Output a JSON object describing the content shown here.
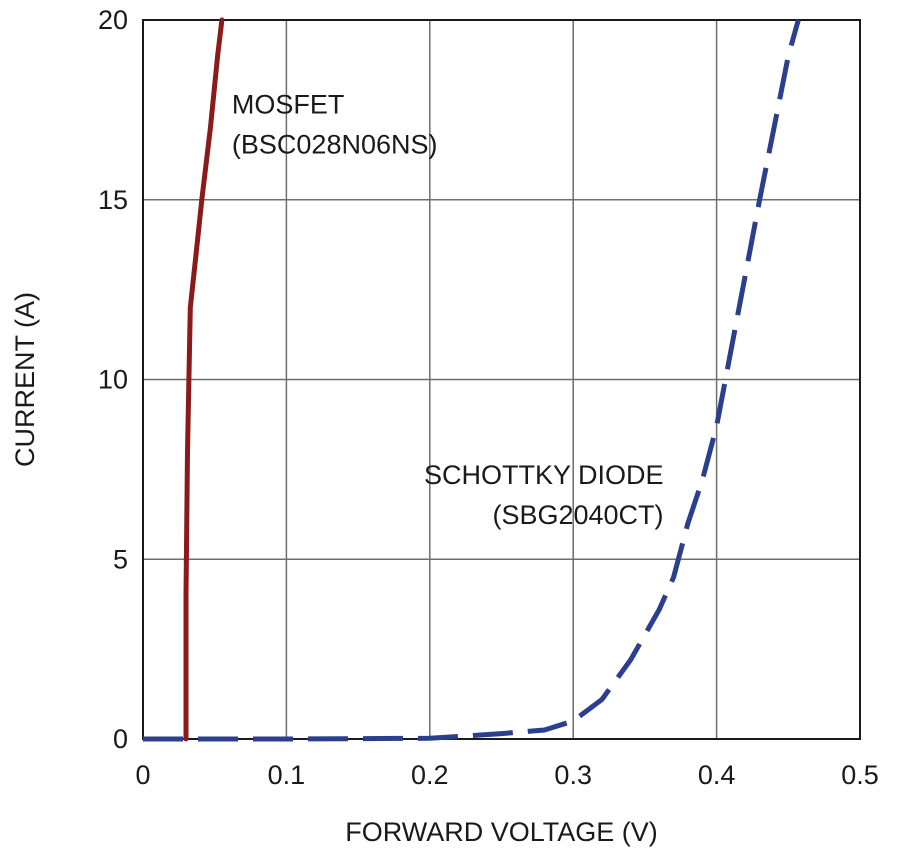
{
  "chart_data": {
    "type": "line",
    "xlabel": "FORWARD VOLTAGE (V)",
    "ylabel": "CURRENT (A)",
    "xlim": [
      0,
      0.5
    ],
    "ylim": [
      0,
      20
    ],
    "x_ticks": [
      0,
      0.1,
      0.2,
      0.3,
      0.4,
      0.5
    ],
    "x_tick_labels": [
      "0",
      "0.1",
      "0.2",
      "0.3",
      "0.4",
      "0.5"
    ],
    "y_ticks": [
      0,
      5,
      10,
      15,
      20
    ],
    "y_tick_labels": [
      "0",
      "5",
      "10",
      "15",
      "20"
    ],
    "grid": true,
    "legend": "none",
    "series": [
      {
        "name": "MOSFET (BSC028N06NS)",
        "color": "#8b1a1a",
        "line_style": "solid",
        "points": [
          [
            0.03,
            0
          ],
          [
            0.03,
            4
          ],
          [
            0.031,
            8
          ],
          [
            0.032,
            10
          ],
          [
            0.033,
            12
          ],
          [
            0.037,
            13.5
          ],
          [
            0.041,
            15
          ],
          [
            0.047,
            17
          ],
          [
            0.052,
            19
          ],
          [
            0.055,
            20
          ]
        ]
      },
      {
        "name": "SCHOTTKY DIODE (SBG2040CT)",
        "color": "#2b3f8c",
        "line_style": "dashed",
        "points": [
          [
            0,
            0
          ],
          [
            0.1,
            0
          ],
          [
            0.2,
            0.02
          ],
          [
            0.25,
            0.15
          ],
          [
            0.28,
            0.25
          ],
          [
            0.3,
            0.5
          ],
          [
            0.32,
            1.1
          ],
          [
            0.34,
            2.2
          ],
          [
            0.36,
            3.6
          ],
          [
            0.37,
            4.5
          ],
          [
            0.38,
            6.0
          ],
          [
            0.39,
            7.2
          ],
          [
            0.4,
            8.7
          ],
          [
            0.41,
            10.8
          ],
          [
            0.42,
            12.9
          ],
          [
            0.43,
            15.0
          ],
          [
            0.44,
            17.0
          ],
          [
            0.45,
            19.0
          ],
          [
            0.457,
            20
          ]
        ]
      }
    ],
    "annotations": [
      {
        "lines": [
          "MOSFET",
          "(BSC028N06NS)"
        ],
        "x": 0.062,
        "y": 17.4,
        "anchor": "start"
      },
      {
        "lines": [
          "SCHOTTKY DIODE",
          "(SBG2040CT)"
        ],
        "x": 0.363,
        "y": 7.1,
        "anchor": "end"
      }
    ]
  }
}
